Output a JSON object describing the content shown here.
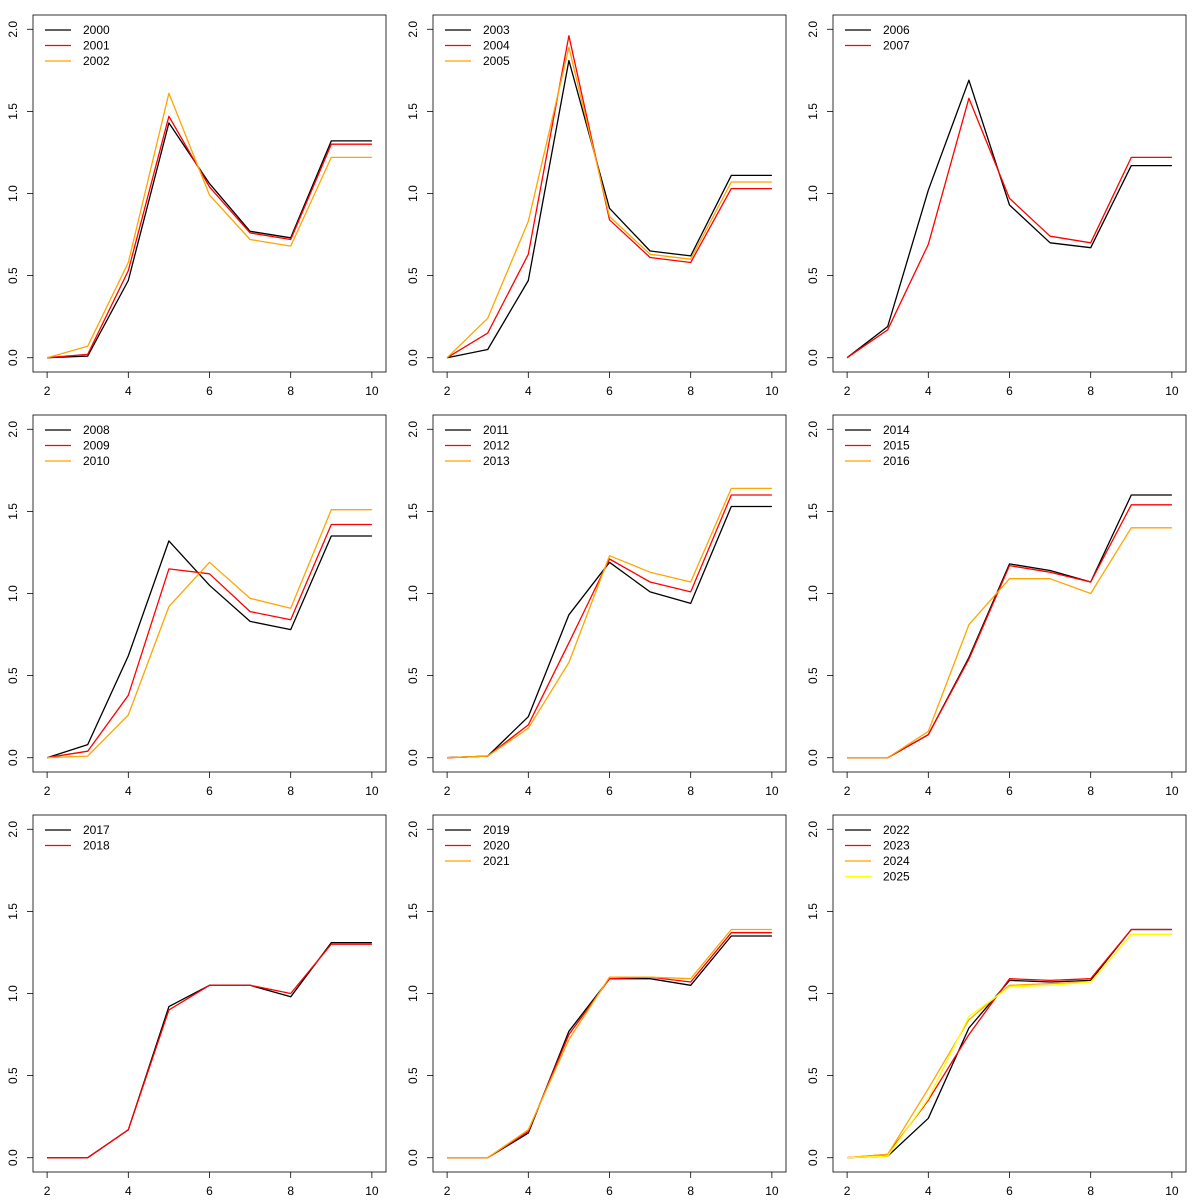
{
  "colors": {
    "c1": "#000000",
    "c2": "#ff0000",
    "c3": "#ffa500",
    "c4": "#ffff00"
  },
  "chart_data": [
    {
      "type": "line",
      "title": "",
      "xlabel": "",
      "ylabel": "",
      "xlim": [
        2,
        10
      ],
      "ylim": [
        0,
        2
      ],
      "xticks": [
        "2",
        "4",
        "6",
        "8",
        "10"
      ],
      "yticks": [
        "0.0",
        "0.5",
        "1.0",
        "1.5",
        "2.0"
      ],
      "legend_position": "top-left",
      "x": [
        2,
        3,
        4,
        5,
        6,
        7,
        8,
        9,
        10
      ],
      "series": [
        {
          "name": "2000",
          "color": "#000000",
          "values": [
            0.0,
            0.01,
            0.47,
            1.43,
            1.06,
            0.77,
            0.73,
            1.32,
            1.32
          ]
        },
        {
          "name": "2001",
          "color": "#ff0000",
          "values": [
            0.0,
            0.02,
            0.53,
            1.47,
            1.04,
            0.76,
            0.72,
            1.3,
            1.3
          ]
        },
        {
          "name": "2002",
          "color": "#ffa500",
          "values": [
            0.0,
            0.07,
            0.58,
            1.61,
            0.99,
            0.72,
            0.68,
            1.22,
            1.22
          ]
        }
      ]
    },
    {
      "type": "line",
      "title": "",
      "xlabel": "",
      "ylabel": "",
      "xlim": [
        2,
        10
      ],
      "ylim": [
        0,
        2
      ],
      "xticks": [
        "2",
        "4",
        "6",
        "8",
        "10"
      ],
      "yticks": [
        "0.0",
        "0.5",
        "1.0",
        "1.5",
        "2.0"
      ],
      "legend_position": "top-left",
      "x": [
        2,
        3,
        4,
        5,
        6,
        7,
        8,
        9,
        10
      ],
      "series": [
        {
          "name": "2003",
          "color": "#000000",
          "values": [
            0.0,
            0.05,
            0.47,
            1.81,
            0.91,
            0.65,
            0.62,
            1.11,
            1.11
          ]
        },
        {
          "name": "2004",
          "color": "#ff0000",
          "values": [
            0.0,
            0.15,
            0.63,
            1.96,
            0.84,
            0.61,
            0.58,
            1.03,
            1.03
          ]
        },
        {
          "name": "2005",
          "color": "#ffa500",
          "values": [
            0.0,
            0.24,
            0.83,
            1.89,
            0.86,
            0.63,
            0.6,
            1.07,
            1.07
          ]
        }
      ]
    },
    {
      "type": "line",
      "title": "",
      "xlabel": "",
      "ylabel": "",
      "xlim": [
        2,
        10
      ],
      "ylim": [
        0,
        2
      ],
      "xticks": [
        "2",
        "4",
        "6",
        "8",
        "10"
      ],
      "yticks": [
        "0.0",
        "0.5",
        "1.0",
        "1.5",
        "2.0"
      ],
      "legend_position": "top-left",
      "x": [
        2,
        3,
        4,
        5,
        6,
        7,
        8,
        9,
        10
      ],
      "series": [
        {
          "name": "2006",
          "color": "#000000",
          "values": [
            0.0,
            0.19,
            1.02,
            1.69,
            0.93,
            0.7,
            0.67,
            1.17,
            1.17
          ]
        },
        {
          "name": "2007",
          "color": "#ff0000",
          "values": [
            0.0,
            0.17,
            0.69,
            1.58,
            0.97,
            0.74,
            0.7,
            1.22,
            1.22
          ]
        }
      ]
    },
    {
      "type": "line",
      "title": "",
      "xlabel": "",
      "ylabel": "",
      "xlim": [
        2,
        10
      ],
      "ylim": [
        0,
        2
      ],
      "xticks": [
        "2",
        "4",
        "6",
        "8",
        "10"
      ],
      "yticks": [
        "0.0",
        "0.5",
        "1.0",
        "1.5",
        "2.0"
      ],
      "legend_position": "top-left",
      "x": [
        2,
        3,
        4,
        5,
        6,
        7,
        8,
        9,
        10
      ],
      "series": [
        {
          "name": "2008",
          "color": "#000000",
          "values": [
            0.0,
            0.08,
            0.62,
            1.32,
            1.05,
            0.83,
            0.78,
            1.35,
            1.35
          ]
        },
        {
          "name": "2009",
          "color": "#ff0000",
          "values": [
            0.0,
            0.04,
            0.38,
            1.15,
            1.12,
            0.89,
            0.84,
            1.42,
            1.42
          ]
        },
        {
          "name": "2010",
          "color": "#ffa500",
          "values": [
            0.0,
            0.01,
            0.26,
            0.92,
            1.19,
            0.97,
            0.91,
            1.51,
            1.51
          ]
        }
      ]
    },
    {
      "type": "line",
      "title": "",
      "xlabel": "",
      "ylabel": "",
      "xlim": [
        2,
        10
      ],
      "ylim": [
        0,
        2
      ],
      "xticks": [
        "2",
        "4",
        "6",
        "8",
        "10"
      ],
      "yticks": [
        "0.0",
        "0.5",
        "1.0",
        "1.5",
        "2.0"
      ],
      "legend_position": "top-left",
      "x": [
        2,
        3,
        4,
        5,
        6,
        7,
        8,
        9,
        10
      ],
      "series": [
        {
          "name": "2011",
          "color": "#000000",
          "values": [
            0.0,
            0.01,
            0.25,
            0.87,
            1.19,
            1.01,
            0.94,
            1.53,
            1.53
          ]
        },
        {
          "name": "2012",
          "color": "#ff0000",
          "values": [
            0.0,
            0.01,
            0.2,
            0.7,
            1.21,
            1.07,
            1.01,
            1.6,
            1.6
          ]
        },
        {
          "name": "2013",
          "color": "#ffa500",
          "values": [
            0.0,
            0.01,
            0.18,
            0.58,
            1.23,
            1.13,
            1.07,
            1.64,
            1.64
          ]
        }
      ]
    },
    {
      "type": "line",
      "title": "",
      "xlabel": "",
      "ylabel": "",
      "xlim": [
        2,
        10
      ],
      "ylim": [
        0,
        2
      ],
      "xticks": [
        "2",
        "4",
        "6",
        "8",
        "10"
      ],
      "yticks": [
        "0.0",
        "0.5",
        "1.0",
        "1.5",
        "2.0"
      ],
      "legend_position": "top-left",
      "x": [
        2,
        3,
        4,
        5,
        6,
        7,
        8,
        9,
        10
      ],
      "series": [
        {
          "name": "2014",
          "color": "#000000",
          "values": [
            0.0,
            0.0,
            0.14,
            0.61,
            1.18,
            1.14,
            1.07,
            1.6,
            1.6
          ]
        },
        {
          "name": "2015",
          "color": "#ff0000",
          "values": [
            0.0,
            0.0,
            0.14,
            0.6,
            1.17,
            1.13,
            1.07,
            1.54,
            1.54
          ]
        },
        {
          "name": "2016",
          "color": "#ffa500",
          "values": [
            0.0,
            0.0,
            0.16,
            0.81,
            1.09,
            1.09,
            1.0,
            1.4,
            1.4
          ]
        }
      ]
    },
    {
      "type": "line",
      "title": "",
      "xlabel": "",
      "ylabel": "",
      "xlim": [
        2,
        10
      ],
      "ylim": [
        0,
        2
      ],
      "xticks": [
        "2",
        "4",
        "6",
        "8",
        "10"
      ],
      "yticks": [
        "0.0",
        "0.5",
        "1.0",
        "1.5",
        "2.0"
      ],
      "legend_position": "top-left",
      "x": [
        2,
        3,
        4,
        5,
        6,
        7,
        8,
        9,
        10
      ],
      "series": [
        {
          "name": "2017",
          "color": "#000000",
          "values": [
            0.0,
            0.0,
            0.17,
            0.92,
            1.05,
            1.05,
            0.98,
            1.31,
            1.31
          ]
        },
        {
          "name": "2018",
          "color": "#ff0000",
          "values": [
            0.0,
            0.0,
            0.17,
            0.9,
            1.05,
            1.05,
            1.0,
            1.3,
            1.3
          ]
        }
      ]
    },
    {
      "type": "line",
      "title": "",
      "xlabel": "",
      "ylabel": "",
      "xlim": [
        2,
        10
      ],
      "ylim": [
        0,
        2
      ],
      "xticks": [
        "2",
        "4",
        "6",
        "8",
        "10"
      ],
      "yticks": [
        "0.0",
        "0.5",
        "1.0",
        "1.5",
        "2.0"
      ],
      "legend_position": "top-left",
      "x": [
        2,
        3,
        4,
        5,
        6,
        7,
        8,
        9,
        10
      ],
      "series": [
        {
          "name": "2019",
          "color": "#000000",
          "values": [
            0.0,
            0.0,
            0.15,
            0.77,
            1.09,
            1.09,
            1.05,
            1.35,
            1.35
          ]
        },
        {
          "name": "2020",
          "color": "#ff0000",
          "values": [
            0.0,
            0.0,
            0.16,
            0.75,
            1.09,
            1.1,
            1.07,
            1.37,
            1.37
          ]
        },
        {
          "name": "2021",
          "color": "#ffa500",
          "values": [
            0.0,
            0.0,
            0.17,
            0.72,
            1.1,
            1.1,
            1.09,
            1.39,
            1.39
          ]
        }
      ]
    },
    {
      "type": "line",
      "title": "",
      "xlabel": "",
      "ylabel": "",
      "xlim": [
        2,
        10
      ],
      "ylim": [
        0,
        2
      ],
      "xticks": [
        "2",
        "4",
        "6",
        "8",
        "10"
      ],
      "yticks": [
        "0.0",
        "0.5",
        "1.0",
        "1.5",
        "2.0"
      ],
      "legend_position": "top-left",
      "x": [
        2,
        3,
        4,
        5,
        6,
        7,
        8,
        9,
        10
      ],
      "series": [
        {
          "name": "2022",
          "color": "#000000",
          "values": [
            0.0,
            0.01,
            0.24,
            0.79,
            1.08,
            1.07,
            1.08,
            1.39,
            1.39
          ]
        },
        {
          "name": "2023",
          "color": "#ff0000",
          "values": [
            0.0,
            0.02,
            0.35,
            0.75,
            1.09,
            1.08,
            1.09,
            1.39,
            1.39
          ]
        },
        {
          "name": "2024",
          "color": "#ffa500",
          "values": [
            0.0,
            0.02,
            0.42,
            0.84,
            1.05,
            1.06,
            1.07,
            1.36,
            1.36
          ]
        },
        {
          "name": "2025",
          "color": "#ffff00",
          "values": [
            0.0,
            0.01,
            0.36,
            0.86,
            1.04,
            1.05,
            1.07,
            1.36,
            1.36
          ]
        }
      ]
    }
  ]
}
